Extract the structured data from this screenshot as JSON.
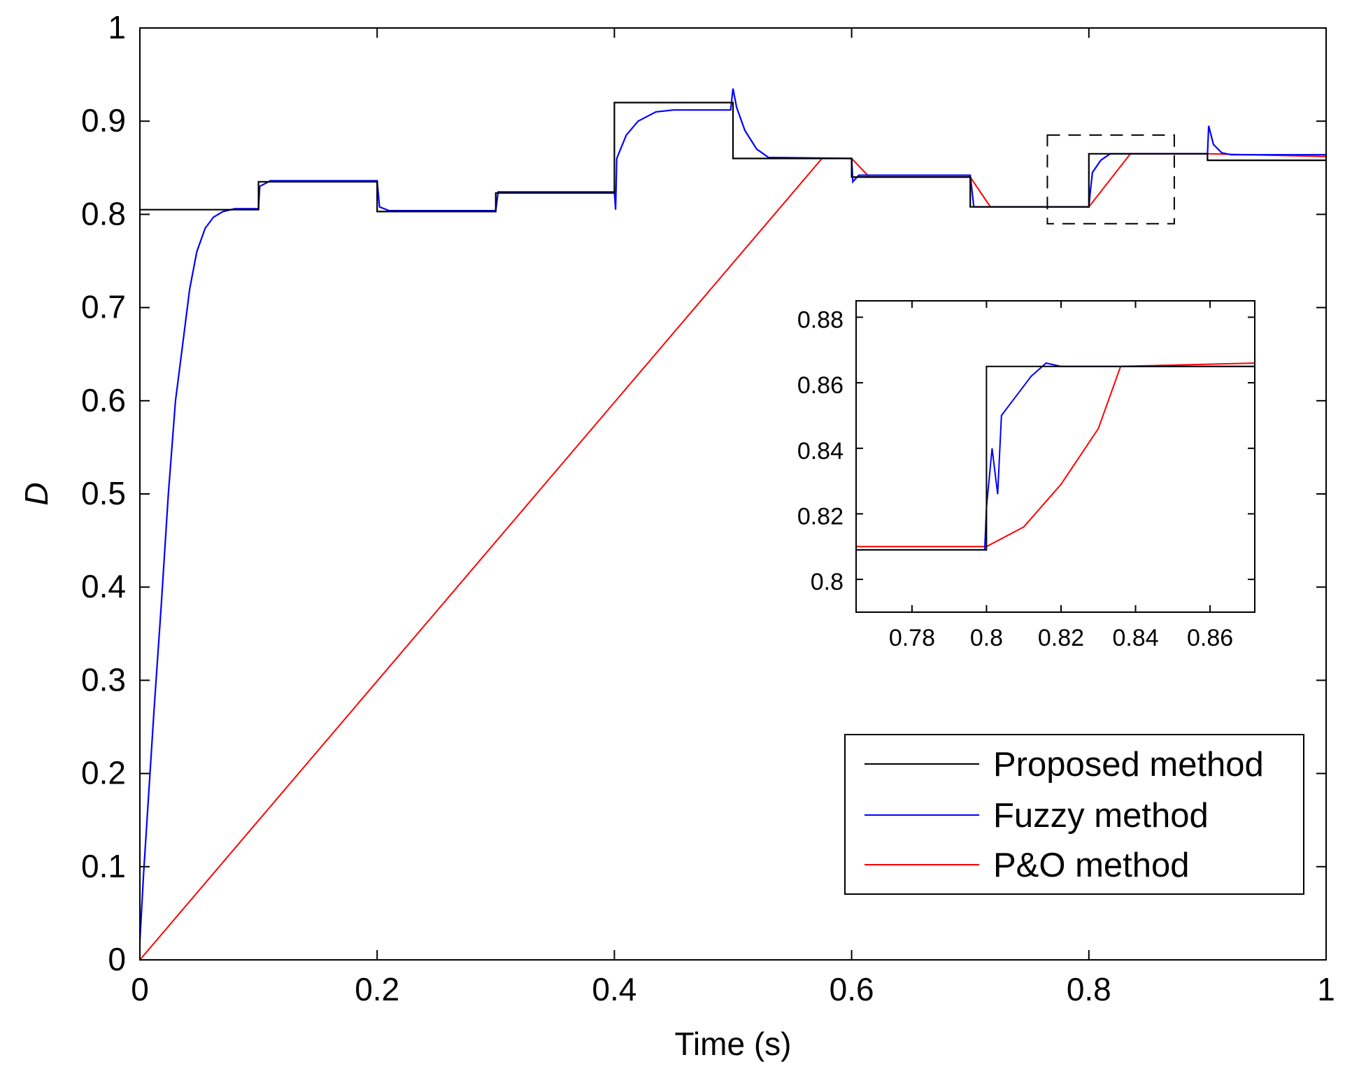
{
  "chart_data": {
    "type": "line",
    "title": "",
    "xlabel": "Time (s)",
    "ylabel": "D",
    "xlim": [
      0,
      1
    ],
    "ylim": [
      0,
      1
    ],
    "xticks": [
      "0",
      "0.2",
      "0.4",
      "0.6",
      "0.8",
      "1"
    ],
    "yticks": [
      "0",
      "0.1",
      "0.2",
      "0.3",
      "0.4",
      "0.5",
      "0.6",
      "0.7",
      "0.8",
      "0.9",
      "1"
    ],
    "grid": false,
    "legend_position": "bottom-right",
    "series": [
      {
        "name": "Proposed method",
        "color": "#000000",
        "points": [
          [
            0,
            0.805
          ],
          [
            0.1,
            0.805
          ],
          [
            0.1,
            0.835
          ],
          [
            0.2,
            0.835
          ],
          [
            0.2,
            0.803
          ],
          [
            0.3,
            0.803
          ],
          [
            0.3,
            0.823
          ],
          [
            0.4,
            0.823
          ],
          [
            0.4,
            0.92
          ],
          [
            0.5,
            0.92
          ],
          [
            0.5,
            0.86
          ],
          [
            0.6,
            0.86
          ],
          [
            0.6,
            0.84
          ],
          [
            0.7,
            0.84
          ],
          [
            0.7,
            0.808
          ],
          [
            0.8,
            0.808
          ],
          [
            0.8,
            0.865
          ],
          [
            0.9,
            0.865
          ],
          [
            0.9,
            0.858
          ],
          [
            1.0,
            0.858
          ]
        ]
      },
      {
        "name": "Fuzzy method",
        "color": "#0000ff",
        "points": [
          [
            0,
            0.02
          ],
          [
            0.003,
            0.09
          ],
          [
            0.007,
            0.17
          ],
          [
            0.012,
            0.27
          ],
          [
            0.018,
            0.38
          ],
          [
            0.024,
            0.5
          ],
          [
            0.03,
            0.6
          ],
          [
            0.036,
            0.66
          ],
          [
            0.042,
            0.72
          ],
          [
            0.048,
            0.76
          ],
          [
            0.055,
            0.785
          ],
          [
            0.062,
            0.797
          ],
          [
            0.07,
            0.803
          ],
          [
            0.08,
            0.806
          ],
          [
            0.1,
            0.806
          ],
          [
            0.101,
            0.83
          ],
          [
            0.11,
            0.836
          ],
          [
            0.2,
            0.836
          ],
          [
            0.202,
            0.808
          ],
          [
            0.21,
            0.804
          ],
          [
            0.3,
            0.804
          ],
          [
            0.302,
            0.824
          ],
          [
            0.4,
            0.824
          ],
          [
            0.401,
            0.805
          ],
          [
            0.402,
            0.86
          ],
          [
            0.41,
            0.885
          ],
          [
            0.42,
            0.9
          ],
          [
            0.435,
            0.91
          ],
          [
            0.45,
            0.912
          ],
          [
            0.498,
            0.912
          ],
          [
            0.5,
            0.935
          ],
          [
            0.503,
            0.915
          ],
          [
            0.51,
            0.89
          ],
          [
            0.52,
            0.87
          ],
          [
            0.53,
            0.861
          ],
          [
            0.6,
            0.86
          ],
          [
            0.601,
            0.835
          ],
          [
            0.606,
            0.842
          ],
          [
            0.7,
            0.842
          ],
          [
            0.703,
            0.808
          ],
          [
            0.8,
            0.808
          ],
          [
            0.801,
            0.822
          ],
          [
            0.803,
            0.845
          ],
          [
            0.81,
            0.858
          ],
          [
            0.818,
            0.865
          ],
          [
            0.9,
            0.865
          ],
          [
            0.901,
            0.895
          ],
          [
            0.905,
            0.875
          ],
          [
            0.912,
            0.866
          ],
          [
            0.92,
            0.864
          ],
          [
            1.0,
            0.864
          ]
        ]
      },
      {
        "name": "P&O method",
        "color": "#ff0000",
        "points": [
          [
            0,
            0.0
          ],
          [
            0.575,
            0.86
          ],
          [
            0.6,
            0.86
          ],
          [
            0.615,
            0.84
          ],
          [
            0.7,
            0.84
          ],
          [
            0.717,
            0.808
          ],
          [
            0.8,
            0.808
          ],
          [
            0.835,
            0.865
          ],
          [
            0.9,
            0.865
          ],
          [
            1.0,
            0.862
          ]
        ]
      }
    ],
    "inset": {
      "xlim": [
        0.765,
        0.872
      ],
      "ylim": [
        0.79,
        0.885
      ],
      "xticks": [
        "0.78",
        "0.8",
        "0.82",
        "0.84",
        "0.86"
      ],
      "yticks": [
        "0.8",
        "0.82",
        "0.84",
        "0.86",
        "0.88"
      ],
      "zoom_region": {
        "x": [
          0.765,
          0.872
        ],
        "y": [
          0.79,
          0.885
        ]
      },
      "series": [
        {
          "name": "Proposed method",
          "color": "#000000",
          "points": [
            [
              0.765,
              0.809
            ],
            [
              0.8,
              0.809
            ],
            [
              0.8,
              0.865
            ],
            [
              0.872,
              0.865
            ]
          ]
        },
        {
          "name": "Fuzzy method",
          "color": "#0000ff",
          "points": [
            [
              0.765,
              0.809
            ],
            [
              0.7995,
              0.809
            ],
            [
              0.8,
              0.822
            ],
            [
              0.8015,
              0.84
            ],
            [
              0.803,
              0.826
            ],
            [
              0.804,
              0.85
            ],
            [
              0.808,
              0.856
            ],
            [
              0.812,
              0.862
            ],
            [
              0.816,
              0.866
            ],
            [
              0.82,
              0.865
            ],
            [
              0.872,
              0.865
            ]
          ]
        },
        {
          "name": "P&O method",
          "color": "#ff0000",
          "points": [
            [
              0.765,
              0.81
            ],
            [
              0.8,
              0.81
            ],
            [
              0.81,
              0.816
            ],
            [
              0.82,
              0.829
            ],
            [
              0.83,
              0.846
            ],
            [
              0.836,
              0.865
            ],
            [
              0.872,
              0.866
            ]
          ]
        }
      ]
    }
  }
}
